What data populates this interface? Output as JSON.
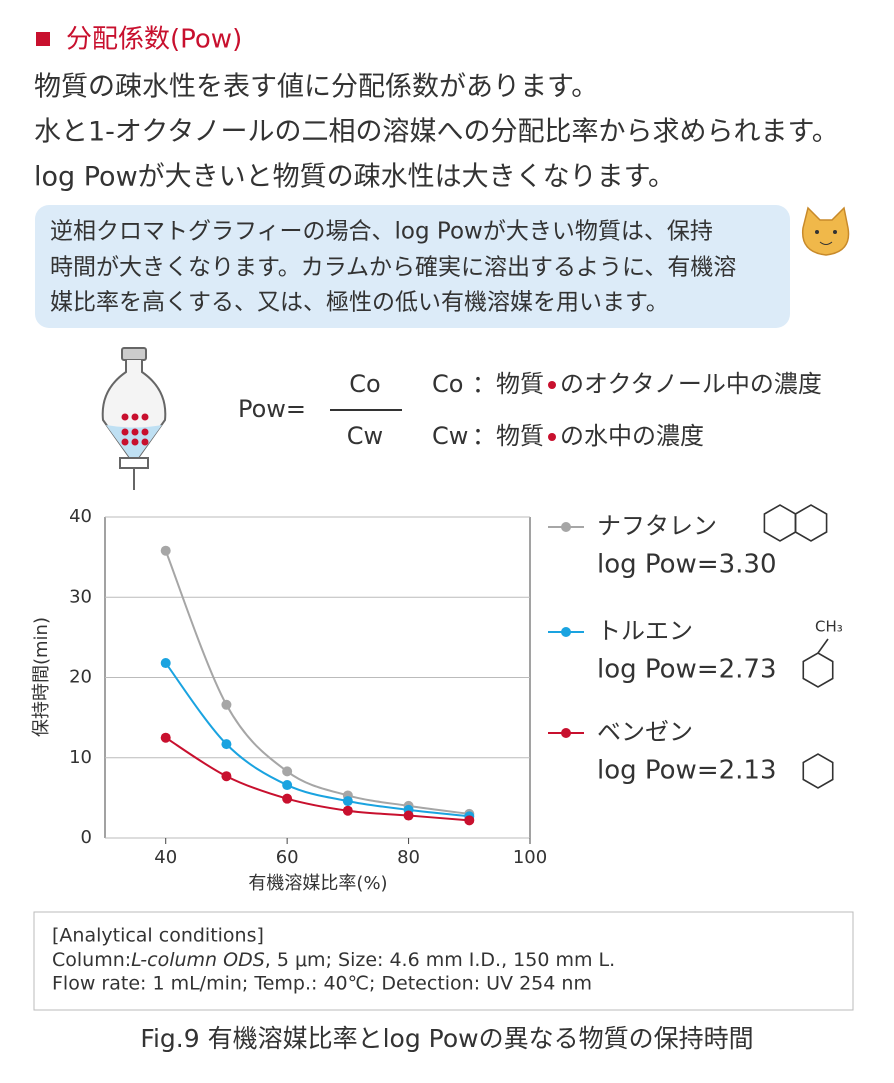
{
  "header": {
    "title": "分配係数(Pow)"
  },
  "intro": [
    "物質の疎水性を表す値に分配係数があります。",
    "水と1-オクタノールの二相の溶媒への分配比率から求められます。",
    "log Powが大きいと物質の疎水性は大きくなります。"
  ],
  "note": [
    "逆相クロマトグラフィーの場合、log Powが大きい物質は、保持",
    "時間が大きくなります。カラムから確実に溶出するように、有機溶",
    "媒比率を高くする、又は、極性の低い有機溶媒を用います。"
  ],
  "formula": {
    "lhs": "Pow=",
    "numerator": "Co",
    "denominator": "Cw",
    "definitions": [
      {
        "symbol": "Co",
        "label": "：物質",
        "text": "のオクタノール中の濃度"
      },
      {
        "symbol": "Cw",
        "label": "：物質",
        "text": "の水中の濃度"
      }
    ]
  },
  "chart_data": {
    "type": "line",
    "x": [
      40,
      50,
      60,
      70,
      80,
      90
    ],
    "xlim": [
      30,
      100
    ],
    "xticks": [
      40,
      60,
      80,
      100
    ],
    "ylim": [
      0,
      40
    ],
    "yticks": [
      0,
      10,
      20,
      30,
      40
    ],
    "grid": true,
    "x_label": "有機溶媒比率(%)",
    "y_label": "保持時間(min)",
    "series": [
      {
        "name": "ナフタレン",
        "label": "log Pow=3.30",
        "color": "#a6a6a6",
        "values": [
          35.8,
          16.6,
          8.3,
          5.3,
          4.0,
          3.0
        ]
      },
      {
        "name": "トルエン",
        "label": "log Pow=2.73",
        "substituent": "CH₃",
        "color": "#1aa3e0",
        "values": [
          21.8,
          11.7,
          6.6,
          4.6,
          3.5,
          2.7
        ]
      },
      {
        "name": "ベンゼン",
        "label": "log Pow=2.13",
        "color": "#c8102e",
        "values": [
          12.5,
          7.7,
          4.9,
          3.4,
          2.8,
          2.2
        ]
      }
    ]
  },
  "conditions": {
    "heading": "[Analytical  conditions]",
    "column_label": "Column:",
    "column_name": "L-column ODS",
    "column_rest": ", 5 μm; Size: 4.6 mm I.D., 150 mm L.",
    "flow": "Flow rate: 1 mL/min; Temp.: 40℃; Detection: UV 254 nm"
  },
  "caption": "Fig.9  有機溶媒比率とlog Powの異なる物質の保持時間"
}
